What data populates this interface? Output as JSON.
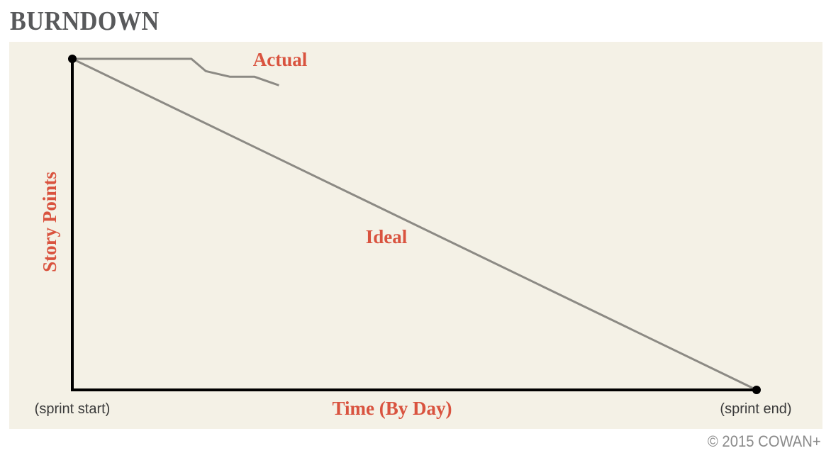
{
  "page": {
    "title": "BURNDOWN",
    "copyright": "© 2015 COWAN+"
  },
  "colors": {
    "background_panel": "#f4f1e6",
    "axis": "#000000",
    "series_line": "#8c8a84",
    "label_accent": "#d9533f",
    "title": "#58595b"
  },
  "chart_data": {
    "type": "line",
    "title": "BURNDOWN",
    "xlabel": "Time (By Day)",
    "ylabel": "Story Points",
    "x_tick_labels": {
      "start": "(sprint start)",
      "end": "(sprint end)"
    },
    "xlim": [
      0,
      10
    ],
    "ylim": [
      0,
      100
    ],
    "grid": false,
    "series": [
      {
        "name": "Ideal",
        "x": [
          0,
          10
        ],
        "y": [
          100,
          0
        ]
      },
      {
        "name": "Actual",
        "x": [
          0,
          1.74,
          1.95,
          2.3,
          2.66,
          3.02
        ],
        "y": [
          100,
          100,
          96.3,
          94.6,
          94.6,
          92.0
        ]
      }
    ],
    "endpoint_markers": [
      {
        "x": 0,
        "y": 100
      },
      {
        "x": 10,
        "y": 0
      }
    ]
  }
}
